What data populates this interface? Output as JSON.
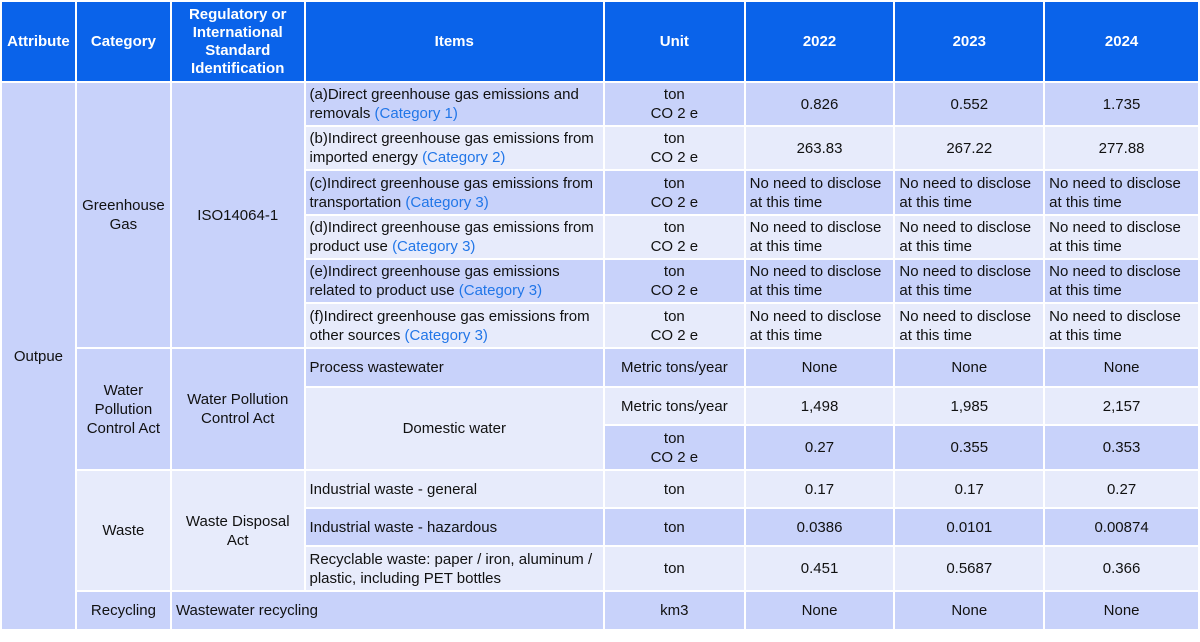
{
  "headers": [
    "Attribute",
    "Category",
    "Regulatory or International Standard Identification",
    "Items",
    "Unit",
    "2022",
    "2023",
    "2024"
  ],
  "attribute": "Outpue",
  "ghg": {
    "category": "Greenhouse Gas",
    "standard": "ISO14064-1",
    "rows": [
      {
        "item": "(a)Direct greenhouse gas emissions and removals ",
        "tag": "(Category 1)",
        "unit1": "ton",
        "unit2": "CO 2 e",
        "v": [
          "0.826",
          "0.552",
          "1.735"
        ]
      },
      {
        "item": "(b)Indirect greenhouse gas emissions from imported energy ",
        "tag": "(Category 2)",
        "unit1": "ton",
        "unit2": "CO 2 e",
        "v": [
          "263.83",
          "267.22",
          "277.88"
        ]
      },
      {
        "item": "(c)Indirect greenhouse gas emissions from transportation ",
        "tag": "(Category 3)",
        "unit1": "ton",
        "unit2": "CO 2 e",
        "v": [
          "No need to disclose at this time",
          "No need to disclose at this time",
          "No need to disclose at this time"
        ]
      },
      {
        "item": "(d)Indirect greenhouse gas emissions from product use ",
        "tag": "(Category 3)",
        "unit1": "ton",
        "unit2": "CO 2 e",
        "v": [
          "No need to disclose at this time",
          "No need to disclose at this time",
          "No need to disclose at this time"
        ]
      },
      {
        "item": "(e)Indirect greenhouse gas emissions related to product use ",
        "tag": "(Category 3)",
        "unit1": "ton",
        "unit2": "CO 2 e",
        "v": [
          "No need to disclose at this time",
          "No need to disclose at this time",
          "No need to disclose at this time"
        ]
      },
      {
        "item": "(f)Indirect greenhouse gas emissions from other sources ",
        "tag": "(Category 3)",
        "unit1": "ton",
        "unit2": "CO 2 e",
        "v": [
          "No need to disclose at this time",
          "No need to disclose at this time",
          "No need to disclose at this time"
        ]
      }
    ]
  },
  "water": {
    "category": "Water Pollution Control Act",
    "standard": "Water Pollution Control Act",
    "process": {
      "item": "Process wastewater",
      "unit": "Metric tons/year",
      "v": [
        "None",
        "None",
        "None"
      ]
    },
    "domestic": {
      "item": "Domestic water",
      "unit_a": "Metric tons/year",
      "va": [
        "1,498",
        "1,985",
        "2,157"
      ],
      "unit_b1": "ton",
      "unit_b2": "CO 2 e",
      "vb": [
        "0.27",
        "0.355",
        "0.353"
      ]
    }
  },
  "waste": {
    "category": "Waste",
    "standard": "Waste Disposal Act",
    "rows": [
      {
        "item": "Industrial waste - general",
        "unit": "ton",
        "v": [
          "0.17",
          "0.17",
          "0.27"
        ]
      },
      {
        "item": "Industrial waste - hazardous",
        "unit": "ton",
        "v": [
          "0.0386",
          "0.0101",
          "0.00874"
        ]
      },
      {
        "item": "Recyclable waste: paper / iron, aluminum / plastic, including PET bottles",
        "unit": "ton",
        "v": [
          "0.451",
          "0.5687",
          "0.366"
        ]
      }
    ]
  },
  "recycling": {
    "category": "Recycling",
    "item": "Wastewater recycling",
    "unit": "km3",
    "v": [
      "None",
      "None",
      "None"
    ]
  }
}
